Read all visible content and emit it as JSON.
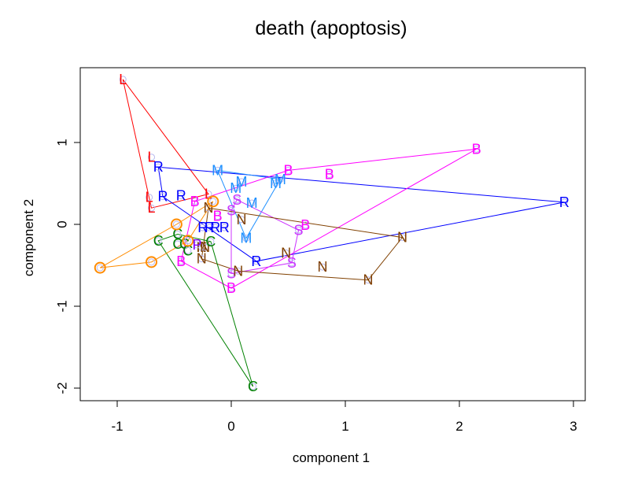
{
  "chart_data": {
    "type": "scatter",
    "title": "death (apoptosis)",
    "xlabel": "component 1",
    "ylabel": "component 2",
    "xlim": [
      -1.32,
      3.1
    ],
    "ylim": [
      -2.15,
      1.9
    ],
    "xticks": [
      -1,
      0,
      1,
      2,
      3
    ],
    "yticks": [
      -2,
      -1,
      0,
      1
    ],
    "xtick_labels": [
      "-1",
      "0",
      "1",
      "2",
      "3"
    ],
    "ytick_labels": [
      "-2",
      "-1",
      "0",
      "1"
    ],
    "grid": false,
    "legend": "none",
    "series": [
      {
        "name": "L",
        "label": "L",
        "color": "#ff0000",
        "points": [
          [
            -0.95,
            1.77
          ],
          [
            -0.7,
            0.82
          ],
          [
            -0.72,
            0.33
          ],
          [
            -0.7,
            0.2
          ],
          [
            -0.2,
            0.37
          ]
        ],
        "hull": [
          0,
          3,
          4
        ]
      },
      {
        "name": "R",
        "label": "R",
        "color": "#0000ff",
        "points": [
          [
            -0.64,
            0.7
          ],
          [
            -0.6,
            0.34
          ],
          [
            -0.44,
            0.35
          ],
          [
            -0.25,
            -0.04
          ],
          [
            -0.19,
            -0.04
          ],
          [
            -0.14,
            -0.04
          ],
          [
            -0.06,
            -0.04
          ],
          [
            0.22,
            -0.45
          ],
          [
            2.92,
            0.27
          ]
        ],
        "hull": [
          0,
          8,
          7,
          1
        ]
      },
      {
        "name": "M",
        "label": "M",
        "color": "#1e90ff",
        "points": [
          [
            -0.12,
            0.66
          ],
          [
            0.04,
            0.44
          ],
          [
            0.09,
            0.52
          ],
          [
            0.18,
            0.26
          ],
          [
            0.13,
            -0.17
          ],
          [
            0.39,
            0.5
          ],
          [
            0.43,
            0.55
          ]
        ],
        "hull": [
          0,
          4,
          6
        ]
      },
      {
        "name": "B",
        "label": "B",
        "color": "#ff00ff",
        "points": [
          [
            2.15,
            0.92
          ],
          [
            0.5,
            0.66
          ],
          [
            0.86,
            0.61
          ],
          [
            -0.32,
            0.28
          ],
          [
            -0.12,
            0.1
          ],
          [
            0.65,
            -0.01
          ],
          [
            -0.44,
            -0.45
          ],
          [
            0.0,
            -0.78
          ]
        ],
        "hull": [
          0,
          1,
          3,
          6,
          7
        ]
      },
      {
        "name": "S",
        "label": "S",
        "color": "#cc33ff",
        "points": [
          [
            0.05,
            0.3
          ],
          [
            0.0,
            0.17
          ],
          [
            0.59,
            -0.07
          ],
          [
            0.53,
            -0.47
          ],
          [
            0.0,
            -0.6
          ]
        ],
        "hull": [
          0,
          2,
          3,
          4,
          1
        ]
      },
      {
        "name": "N",
        "label": "N",
        "color": "#804000",
        "points": [
          [
            -0.2,
            0.2
          ],
          [
            0.09,
            0.06
          ],
          [
            1.5,
            -0.16
          ],
          [
            0.48,
            -0.35
          ],
          [
            0.8,
            -0.52
          ],
          [
            1.2,
            -0.68
          ],
          [
            -0.26,
            -0.28
          ],
          [
            -0.26,
            -0.28
          ],
          [
            -0.26,
            -0.28
          ],
          [
            0.06,
            -0.57
          ],
          [
            -0.26,
            -0.42
          ],
          [
            -0.23,
            -0.28
          ]
        ],
        "hull": [
          0,
          2,
          5,
          9,
          10
        ]
      },
      {
        "name": "C",
        "label": "C",
        "color": "#008000",
        "points": [
          [
            -0.64,
            -0.2
          ],
          [
            -0.47,
            -0.12
          ],
          [
            -0.47,
            -0.24
          ],
          [
            -0.41,
            -0.24
          ],
          [
            -0.38,
            -0.32
          ],
          [
            -0.18,
            -0.21
          ],
          [
            0.19,
            -1.98
          ]
        ],
        "hull": [
          0,
          1,
          5,
          6
        ]
      },
      {
        "name": "O",
        "label": "O",
        "color": "#ff8c00",
        "points": [
          [
            -0.16,
            0.28
          ],
          [
            -0.48,
            0.0
          ],
          [
            -0.38,
            -0.2
          ],
          [
            -0.7,
            -0.46
          ],
          [
            -1.15,
            -0.53
          ]
        ],
        "hull": [
          0,
          2,
          3,
          4,
          1
        ],
        "marker": "circle"
      },
      {
        "name": "P",
        "label": "P",
        "color": "#8000ff",
        "points": [
          [
            -0.3,
            -0.25
          ]
        ],
        "hull": [
          0
        ]
      }
    ]
  }
}
